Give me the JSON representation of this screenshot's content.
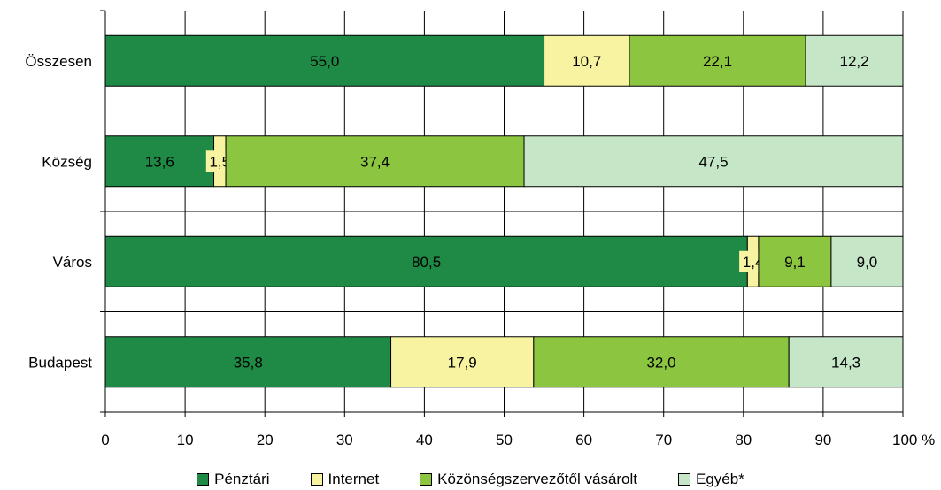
{
  "chart_data": {
    "type": "bar",
    "orientation": "horizontal",
    "stacked": true,
    "categories": [
      "Összesen",
      "Község",
      "Város",
      "Budapest"
    ],
    "series": [
      {
        "name": "Pénztári",
        "color": "#1e8a45",
        "values": [
          55.0,
          13.6,
          80.5,
          35.8
        ],
        "labels": [
          "55,0",
          "13,6",
          "80,5",
          "35,8"
        ]
      },
      {
        "name": "Internet",
        "color": "#f7f3a0",
        "values": [
          10.7,
          1.5,
          1.4,
          17.9
        ],
        "labels": [
          "10,7",
          "1,5",
          "1,4",
          "17,9"
        ]
      },
      {
        "name": "Közönségszervezőtől vásárolt",
        "color": "#8cc540",
        "values": [
          22.1,
          37.4,
          9.1,
          32.0
        ],
        "labels": [
          "22,1",
          "37,4",
          "9,1",
          "32,0"
        ]
      },
      {
        "name": "Egyéb*",
        "color": "#c6e6c8",
        "values": [
          12.2,
          47.5,
          9.0,
          14.3
        ],
        "labels": [
          "12,2",
          "47,5",
          "9,0",
          "14,3"
        ]
      }
    ],
    "xlim": [
      0,
      100
    ],
    "xticks": [
      0,
      10,
      20,
      30,
      40,
      50,
      60,
      70,
      80,
      90,
      100
    ],
    "xtick_labels": [
      "0",
      "10",
      "20",
      "30",
      "40",
      "50",
      "60",
      "70",
      "80",
      "90",
      "100 %"
    ],
    "grid": true,
    "legend_position": "bottom"
  }
}
